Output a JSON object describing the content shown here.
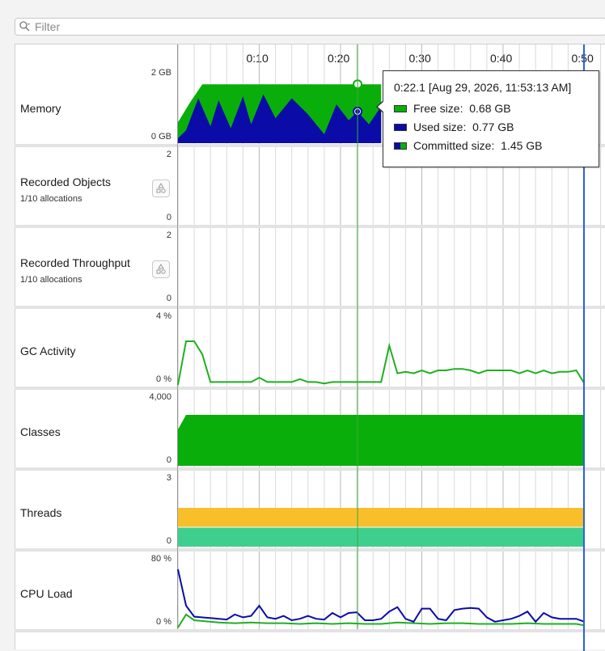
{
  "filter": {
    "placeholder": "Filter",
    "value": ""
  },
  "time_axis": {
    "ticks": [
      "0:10",
      "0:20",
      "0:30",
      "0:40",
      "0:50"
    ]
  },
  "cursor": {
    "time": "0:22.1"
  },
  "colors": {
    "free": "#0aae0a",
    "used": "#0b0ba8",
    "gc": "#1fb01f",
    "classes": "#0aae0a",
    "threads_top": "#f8bf2b",
    "threads_bottom": "#3ecf8e",
    "cpu_process": "#0b0ba8",
    "cpu_system": "#1fb01f",
    "cursor_line": "#3ca83c",
    "end_line": "#2a62d9"
  },
  "lanes": [
    {
      "id": "memory",
      "name": "Memory",
      "ymax": "2 GB",
      "ymin": "0 GB"
    },
    {
      "id": "recorded-objects",
      "name": "Recorded Objects",
      "sub": "1/10 allocations",
      "ymax": "2",
      "ymin": "0",
      "icon": "record-settings-icon"
    },
    {
      "id": "recorded-throughput",
      "name": "Recorded Throughput",
      "sub": "1/10 allocations",
      "ymax": "2",
      "ymin": "0",
      "icon": "record-settings-icon"
    },
    {
      "id": "gc-activity",
      "name": "GC Activity",
      "ymax": "4 %",
      "ymin": "0 %"
    },
    {
      "id": "classes",
      "name": "Classes",
      "ymax": "4,000",
      "ymin": "0"
    },
    {
      "id": "threads",
      "name": "Threads",
      "ymax": "3",
      "ymin": "0"
    },
    {
      "id": "cpu-load",
      "name": "CPU Load",
      "ymax": "80 %",
      "ymin": "0 %"
    }
  ],
  "tooltip": {
    "title": "0:22.1 [Aug 29, 2026, 11:53:13 AM]",
    "rows": [
      {
        "label": "Free size:",
        "value": "0.68 GB"
      },
      {
        "label": "Used size:",
        "value": "0.77 GB"
      },
      {
        "label": "Committed size:",
        "value": "1.45 GB"
      }
    ]
  },
  "chart_data": [
    {
      "type": "area",
      "title": "Memory",
      "ylim": [
        0,
        2
      ],
      "series": [
        {
          "name": "Used size",
          "x": [
            0,
            1,
            2.5,
            4,
            5,
            6.5,
            8,
            9,
            10.5,
            12,
            14,
            16,
            18,
            19.5,
            21,
            22.1,
            23.5,
            25
          ],
          "values": [
            0.1,
            0.3,
            1.1,
            0.4,
            1.05,
            0.35,
            1.15,
            0.45,
            1.2,
            0.6,
            1.1,
            0.7,
            0.2,
            0.95,
            0.55,
            0.77,
            0.45,
            0.9
          ]
        },
        {
          "name": "Committed size",
          "x": [
            0,
            1.5,
            3,
            22.1,
            25
          ],
          "values": [
            0.5,
            1.0,
            1.45,
            1.45,
            1.45
          ]
        }
      ]
    },
    {
      "type": "line",
      "title": "GC Activity",
      "ylim": [
        0,
        4
      ],
      "series": [
        {
          "x": [
            0,
            1,
            2,
            3,
            4,
            5,
            6,
            7,
            8,
            9,
            10,
            11,
            12,
            13,
            14,
            15,
            16,
            17,
            18,
            19,
            20,
            21,
            22,
            23,
            24,
            25,
            26,
            27,
            28,
            29,
            30,
            31,
            32,
            33,
            34,
            35,
            36,
            37,
            38,
            39,
            40,
            41,
            42,
            43,
            44,
            45,
            46,
            47,
            48,
            49,
            50
          ],
          "values": [
            0,
            3.0,
            3.0,
            2.1,
            0.2,
            0.2,
            0.2,
            0.2,
            0.2,
            0.2,
            0.5,
            0.2,
            0.2,
            0.2,
            0.2,
            0.4,
            0.2,
            0.2,
            0.1,
            0.2,
            0.2,
            0.2,
            0.2,
            0.2,
            0.2,
            0.2,
            2.7,
            0.8,
            0.9,
            0.8,
            1.0,
            0.8,
            1.0,
            1.0,
            1.1,
            1.1,
            1.0,
            0.8,
            1.0,
            1.0,
            1.0,
            1.0,
            0.8,
            1.0,
            0.8,
            1.0,
            0.8,
            0.9,
            0.9,
            1.0,
            0.1
          ]
        }
      ]
    },
    {
      "type": "area",
      "title": "Classes",
      "ylim": [
        0,
        4000
      ],
      "series": [
        {
          "x": [
            0,
            1,
            50
          ],
          "values": [
            2500,
            3500,
            3500
          ]
        }
      ]
    },
    {
      "type": "area",
      "title": "Threads",
      "ylim": [
        0,
        3
      ],
      "series": [
        {
          "x": [
            0,
            50
          ],
          "values": [
            1,
            1
          ]
        },
        {
          "x": [
            0,
            50
          ],
          "values": [
            2,
            2
          ]
        }
      ]
    },
    {
      "type": "line",
      "title": "CPU Load",
      "ylim": [
        0,
        80
      ],
      "series": [
        {
          "x": [
            0,
            1,
            2,
            4,
            6,
            7,
            8,
            9,
            10,
            11,
            12,
            13,
            14,
            15,
            16,
            17,
            18,
            19,
            20,
            21,
            22,
            23,
            24,
            25,
            26,
            27,
            28,
            29,
            30,
            31,
            32,
            33,
            34,
            35,
            36,
            37,
            38,
            39,
            40,
            41,
            42,
            43,
            44,
            45,
            46,
            47,
            48,
            49,
            50
          ],
          "values": [
            80,
            30,
            15,
            13,
            11,
            18,
            14,
            16,
            30,
            14,
            12,
            16,
            10,
            12,
            16,
            12,
            11,
            20,
            14,
            20,
            21,
            10,
            10,
            12,
            22,
            28,
            12,
            8,
            26,
            26,
            12,
            10,
            24,
            26,
            27,
            26,
            14,
            8,
            10,
            12,
            16,
            22,
            8,
            20,
            14,
            12,
            12,
            12,
            8
          ]
        },
        {
          "x": [
            0,
            1,
            2,
            3,
            5,
            7,
            9,
            11,
            13,
            15,
            17,
            19,
            21,
            23,
            25,
            27,
            29,
            31,
            33,
            35,
            37,
            39,
            41,
            43,
            45,
            47,
            49,
            50
          ],
          "values": [
            0,
            18,
            10,
            9,
            7,
            6,
            7,
            6,
            6,
            5,
            6,
            5,
            6,
            5,
            5,
            7,
            6,
            5,
            6,
            6,
            5,
            5,
            5,
            6,
            5,
            5,
            5,
            3
          ]
        }
      ]
    }
  ]
}
